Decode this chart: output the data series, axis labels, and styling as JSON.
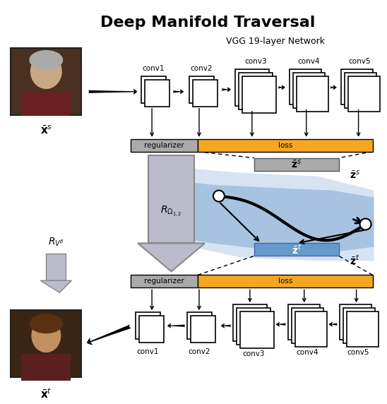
{
  "title": "Deep Manifold Traversal",
  "subtitle": "VGG 19-layer Network",
  "title_fontsize": 16,
  "subtitle_fontsize": 10,
  "background_color": "#ffffff",
  "gray_color": "#999999",
  "orange_color": "#f5a623",
  "blue_color": "#6699cc",
  "light_blue_color": "#aabbdd",
  "dark_color": "#333333",
  "arrow_color": "#555555",
  "box_color": "#ffffff",
  "box_edge": "#333333",
  "reg_color": "#aaaaaa",
  "loss_color": "#f5a623",
  "manifold_blue": "#7799cc",
  "manifold_light": "#aaccee",
  "path_color": "#111111",
  "node_color": "#ffffff",
  "node_edge": "#333333",
  "big_arrow_gray": "#aaaaaa",
  "label_xs": "x̅^s",
  "label_xt": "x̅^t",
  "label_zs": "z̅^s",
  "label_zt": "z̅^t",
  "label_rv": "R_{V^\\beta}",
  "label_rom": "R_{\\Omega_{1,2}}"
}
